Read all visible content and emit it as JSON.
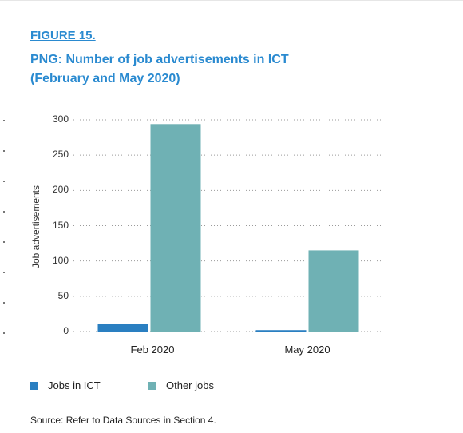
{
  "figure_label": "FIGURE 15.",
  "title_lines": [
    "PNG: Number of job advertisements in ICT",
    "(February and May 2020)"
  ],
  "source": "Source: Refer to Data Sources in Section 4.",
  "chart_data": {
    "type": "bar",
    "categories": [
      "Feb 2020",
      "May 2020"
    ],
    "series": [
      {
        "name": "Jobs in ICT",
        "values": [
          11,
          2
        ],
        "color": "#2a7fc1"
      },
      {
        "name": "Other jobs",
        "values": [
          294,
          115
        ],
        "color": "#6fb1b4"
      }
    ],
    "ylabel": "Job advertisements",
    "yticks": [
      0,
      50,
      100,
      150,
      200,
      250,
      300
    ],
    "ytick_labels": [
      "0",
      "50",
      "100",
      "150",
      "200",
      "250",
      "300"
    ],
    "ylim": [
      0,
      300
    ],
    "grid": "dotted horizontal",
    "legend_position": "bottom-left"
  }
}
